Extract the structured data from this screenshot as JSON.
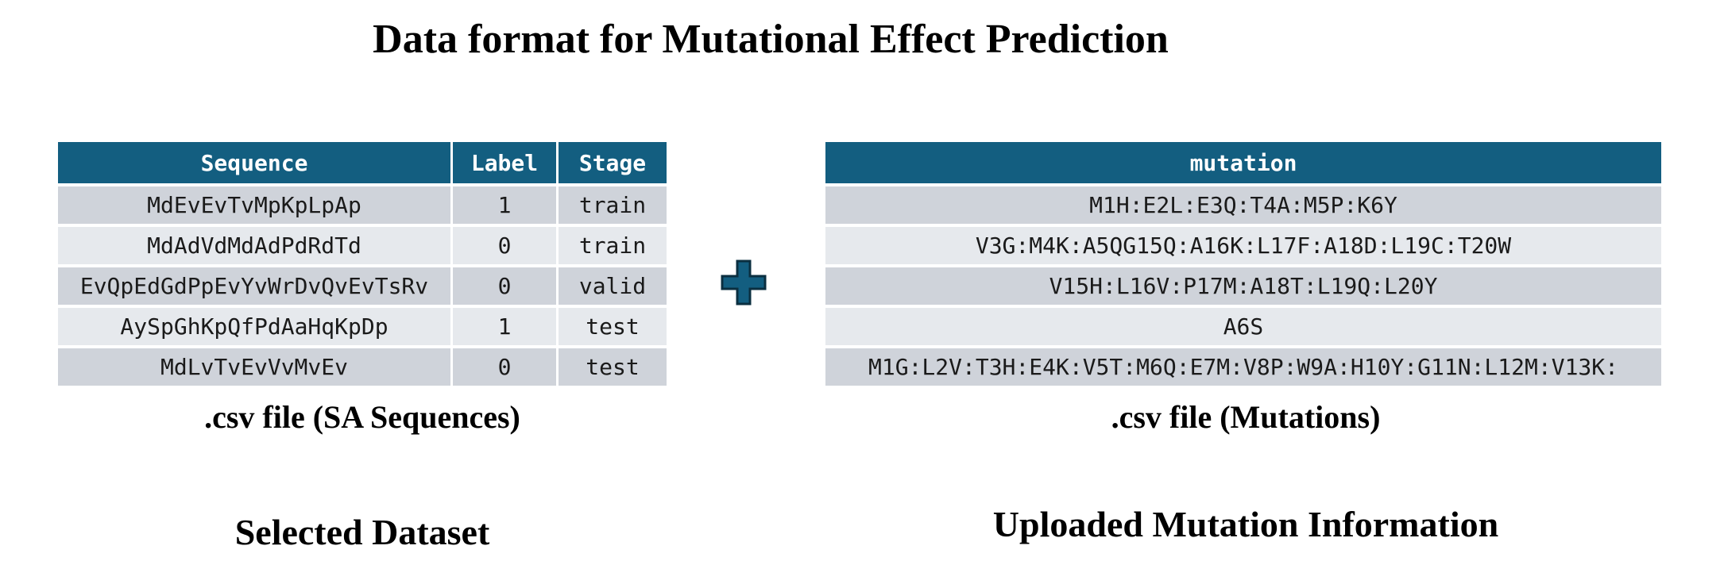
{
  "title": "Data format for Mutational Effect Prediction",
  "dataset_table": {
    "headers": [
      "Sequence",
      "Label",
      "Stage"
    ],
    "rows": [
      [
        "MdEvEvTvMpKpLpAp",
        "1",
        "train"
      ],
      [
        "MdAdVdMdAdPdRdTd",
        "0",
        "train"
      ],
      [
        "EvQpEdGdPpEvYvWrDvQvEvTsRv",
        "0",
        "valid"
      ],
      [
        "AySpGhKpQfPdAaHqKpDp",
        "1",
        "test"
      ],
      [
        "MdLvTvEvVvMvEv",
        "0",
        "test"
      ]
    ],
    "caption": ".csv file (SA Sequences)"
  },
  "mutation_table": {
    "header": "mutation",
    "rows": [
      "M1H:E2L:E3Q:T4A:M5P:K6Y",
      "V3G:M4K:A5QG15Q:A16K:L17F:A18D:L19C:T20W",
      "V15H:L16V:P17M:A18T:L19Q:L20Y",
      "A6S",
      "M1G:L2V:T3H:E4K:V5T:M6Q:E7M:V8P:W9A:H10Y:G11N:L12M:V13K:"
    ],
    "caption": ".csv file (Mutations)"
  },
  "plus_icon": {
    "name": "plus-icon",
    "fill": "#135e80",
    "stroke": "#0b2f40"
  },
  "labels": {
    "left": "Selected Dataset",
    "right": "Uploaded Mutation Information"
  }
}
